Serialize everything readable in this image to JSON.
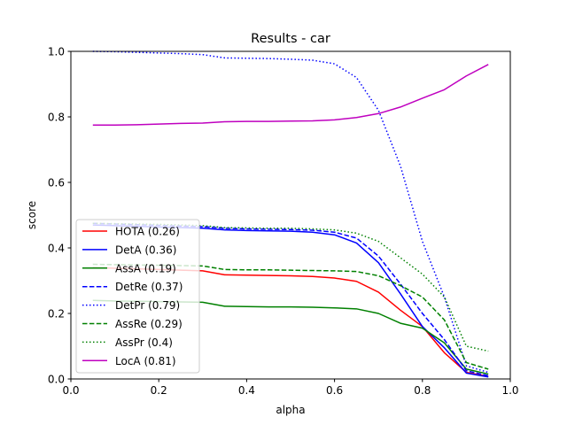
{
  "chart_data": {
    "type": "line",
    "title": "Results - car",
    "xlabel": "alpha",
    "ylabel": "score",
    "xlim": [
      0.0,
      1.0
    ],
    "ylim": [
      0.0,
      1.0
    ],
    "xticks": [
      "0.0",
      "0.2",
      "0.4",
      "0.6",
      "0.8",
      "1.0"
    ],
    "yticks": [
      "0.0",
      "0.2",
      "0.4",
      "0.6",
      "0.8",
      "1.0"
    ],
    "grid": false,
    "legend_position": "lower-left",
    "x": [
      0.05,
      0.1,
      0.15,
      0.2,
      0.25,
      0.3,
      0.35,
      0.4,
      0.45,
      0.5,
      0.55,
      0.6,
      0.65,
      0.7,
      0.75,
      0.8,
      0.85,
      0.9,
      0.95
    ],
    "series": [
      {
        "name": "HOTA (0.26)",
        "color": "#ff0000",
        "dash": "solid",
        "values": [
          0.34,
          0.338,
          0.336,
          0.334,
          0.332,
          0.33,
          0.318,
          0.317,
          0.316,
          0.315,
          0.313,
          0.308,
          0.298,
          0.265,
          0.21,
          0.16,
          0.08,
          0.02,
          0.008
        ]
      },
      {
        "name": "DetA (0.36)",
        "color": "#0000ff",
        "dash": "solid",
        "values": [
          0.47,
          0.468,
          0.466,
          0.464,
          0.462,
          0.46,
          0.455,
          0.453,
          0.452,
          0.451,
          0.448,
          0.44,
          0.415,
          0.355,
          0.26,
          0.16,
          0.095,
          0.018,
          0.006
        ]
      },
      {
        "name": "AssA (0.19)",
        "color": "#008000",
        "dash": "solid",
        "values": [
          0.24,
          0.238,
          0.237,
          0.236,
          0.235,
          0.234,
          0.222,
          0.221,
          0.22,
          0.22,
          0.219,
          0.217,
          0.214,
          0.2,
          0.17,
          0.155,
          0.11,
          0.03,
          0.015
        ]
      },
      {
        "name": "DetRe (0.37)",
        "color": "#0000ff",
        "dash": "dashed",
        "values": [
          0.475,
          0.473,
          0.471,
          0.469,
          0.467,
          0.465,
          0.46,
          0.458,
          0.457,
          0.456,
          0.454,
          0.448,
          0.43,
          0.375,
          0.29,
          0.2,
          0.12,
          0.025,
          0.01
        ]
      },
      {
        "name": "DetPr (0.79)",
        "color": "#0000ff",
        "dash": "dotted",
        "values": [
          1.0,
          0.999,
          0.997,
          0.995,
          0.993,
          0.99,
          0.98,
          0.979,
          0.978,
          0.976,
          0.973,
          0.962,
          0.92,
          0.82,
          0.65,
          0.42,
          0.25,
          0.04,
          0.02
        ]
      },
      {
        "name": "AssRe (0.29)",
        "color": "#008000",
        "dash": "dashed",
        "values": [
          0.35,
          0.349,
          0.348,
          0.347,
          0.346,
          0.345,
          0.334,
          0.333,
          0.333,
          0.332,
          0.331,
          0.33,
          0.328,
          0.315,
          0.285,
          0.25,
          0.18,
          0.05,
          0.03
        ]
      },
      {
        "name": "AssPr (0.4)",
        "color": "#008000",
        "dash": "dotted",
        "values": [
          0.475,
          0.474,
          0.473,
          0.472,
          0.47,
          0.468,
          0.462,
          0.461,
          0.46,
          0.46,
          0.458,
          0.455,
          0.445,
          0.42,
          0.37,
          0.32,
          0.25,
          0.1,
          0.085
        ]
      },
      {
        "name": "LocA (0.81)",
        "color": "#bf00bf",
        "dash": "solid",
        "values": [
          0.775,
          0.775,
          0.776,
          0.778,
          0.78,
          0.781,
          0.785,
          0.786,
          0.786,
          0.787,
          0.788,
          0.791,
          0.798,
          0.81,
          0.83,
          0.857,
          0.883,
          0.925,
          0.96
        ]
      }
    ]
  }
}
